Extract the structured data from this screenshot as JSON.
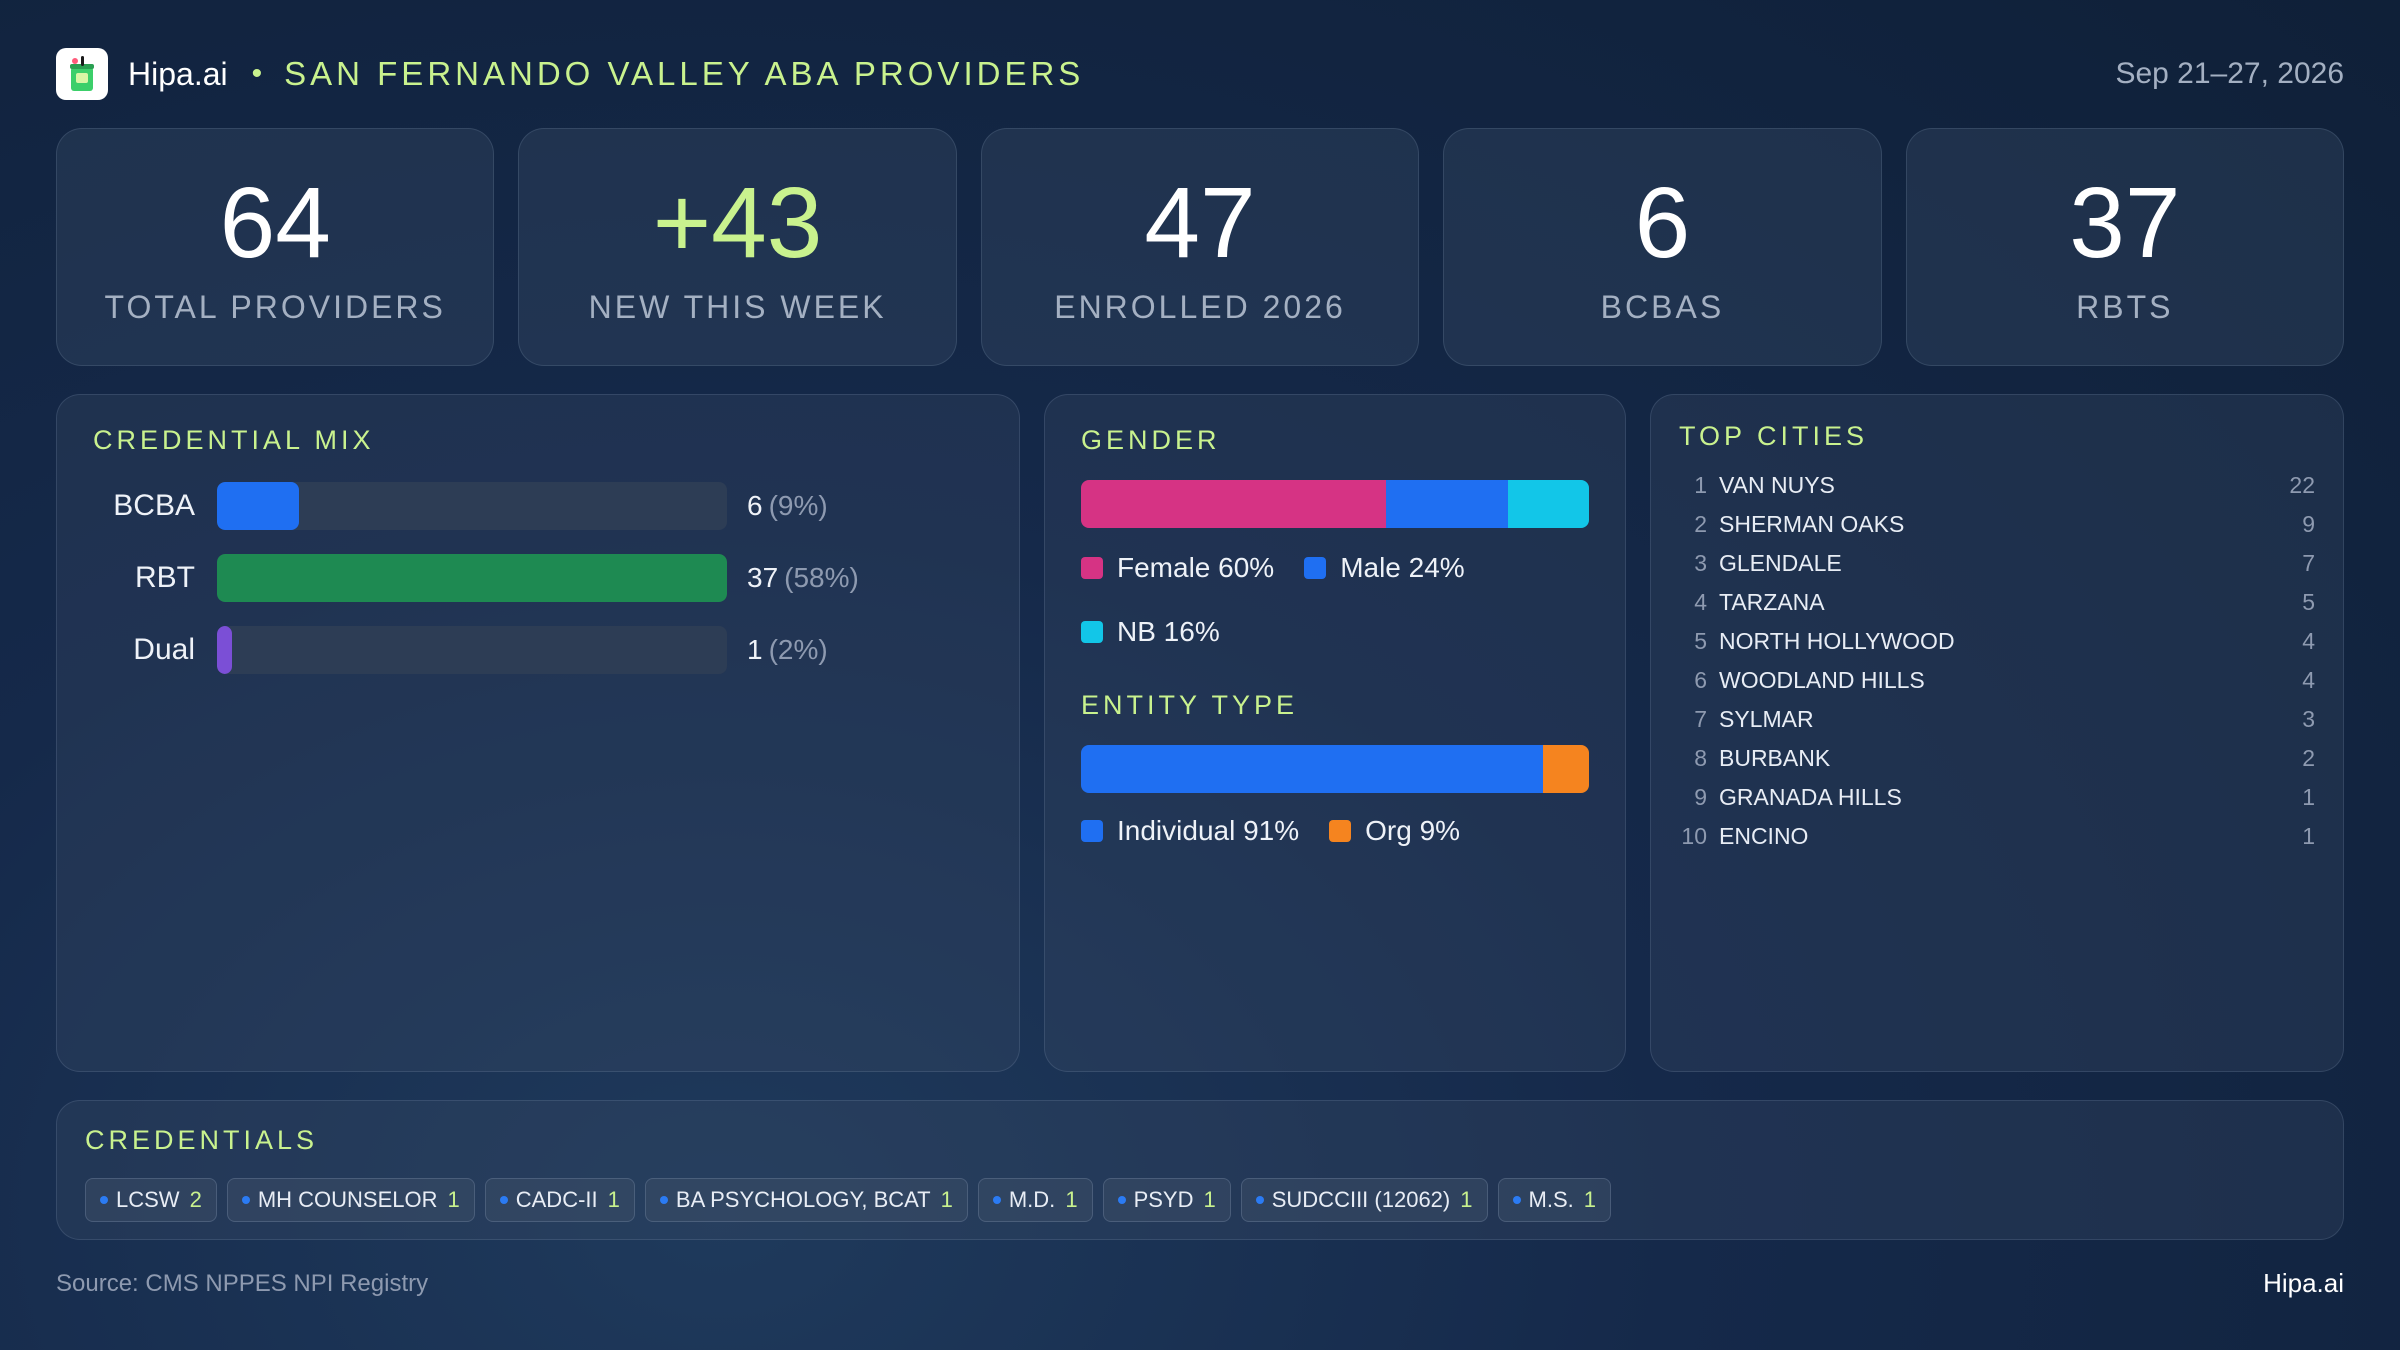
{
  "header": {
    "brand": "Hipa.ai",
    "separator": "•",
    "title": "SAN FERNANDO VALLEY ABA PROVIDERS",
    "date_range": "Sep 21–27, 2026"
  },
  "kpis": [
    {
      "value": "64",
      "label": "TOTAL PROVIDERS"
    },
    {
      "value": "+43",
      "label": "NEW THIS WEEK"
    },
    {
      "value": "47",
      "label": "ENROLLED 2026"
    },
    {
      "value": "6",
      "label": "BCBAS"
    },
    {
      "value": "37",
      "label": "RBTS"
    }
  ],
  "credential_mix": {
    "title": "CREDENTIAL MIX",
    "rows": [
      {
        "name": "BCBA",
        "count": "6",
        "pct": "(9%)",
        "fill": 0.16,
        "color": "#1f6ff2"
      },
      {
        "name": "RBT",
        "count": "37",
        "pct": "(58%)",
        "fill": 1.0,
        "color": "#1e8a52"
      },
      {
        "name": "Dual",
        "count": "1",
        "pct": "(2%)",
        "fill": 0.03,
        "color": "#7b4fd6"
      }
    ]
  },
  "gender": {
    "title": "GENDER",
    "segments": [
      {
        "label": "Female 60%",
        "share": 60,
        "color": "#d63384"
      },
      {
        "label": "Male 24%",
        "share": 24,
        "color": "#1f6ff2"
      },
      {
        "label": "NB 16%",
        "share": 16,
        "color": "#12c6e8"
      }
    ]
  },
  "entity_type": {
    "title": "ENTITY TYPE",
    "segments": [
      {
        "label": "Individual 91%",
        "share": 91,
        "color": "#1f6ff2"
      },
      {
        "label": "Org 9%",
        "share": 9,
        "color": "#f5841f"
      }
    ]
  },
  "top_cities": {
    "title": "TOP CITIES",
    "items": [
      {
        "rank": "1",
        "name": "VAN NUYS",
        "count": "22"
      },
      {
        "rank": "2",
        "name": "SHERMAN OAKS",
        "count": "9"
      },
      {
        "rank": "3",
        "name": "GLENDALE",
        "count": "7"
      },
      {
        "rank": "4",
        "name": "TARZANA",
        "count": "5"
      },
      {
        "rank": "5",
        "name": "NORTH HOLLYWOOD",
        "count": "4"
      },
      {
        "rank": "6",
        "name": "WOODLAND HILLS",
        "count": "4"
      },
      {
        "rank": "7",
        "name": "SYLMAR",
        "count": "3"
      },
      {
        "rank": "8",
        "name": "BURBANK",
        "count": "2"
      },
      {
        "rank": "9",
        "name": "GRANADA HILLS",
        "count": "1"
      },
      {
        "rank": "10",
        "name": "ENCINO",
        "count": "1"
      }
    ]
  },
  "credentials": {
    "title": "CREDENTIALS",
    "chips": [
      {
        "label": "LCSW",
        "count": "2"
      },
      {
        "label": "MH COUNSELOR",
        "count": "1"
      },
      {
        "label": "CADC-II",
        "count": "1"
      },
      {
        "label": "BA PSYCHOLOGY, BCAT",
        "count": "1"
      },
      {
        "label": "M.D.",
        "count": "1"
      },
      {
        "label": "PSYD",
        "count": "1"
      },
      {
        "label": "SUDCCIII (12062)",
        "count": "1"
      },
      {
        "label": "M.S.",
        "count": "1"
      }
    ]
  },
  "footer": {
    "source": "Source: CMS NPPES NPI Registry",
    "brand": "Hipa.ai"
  }
}
